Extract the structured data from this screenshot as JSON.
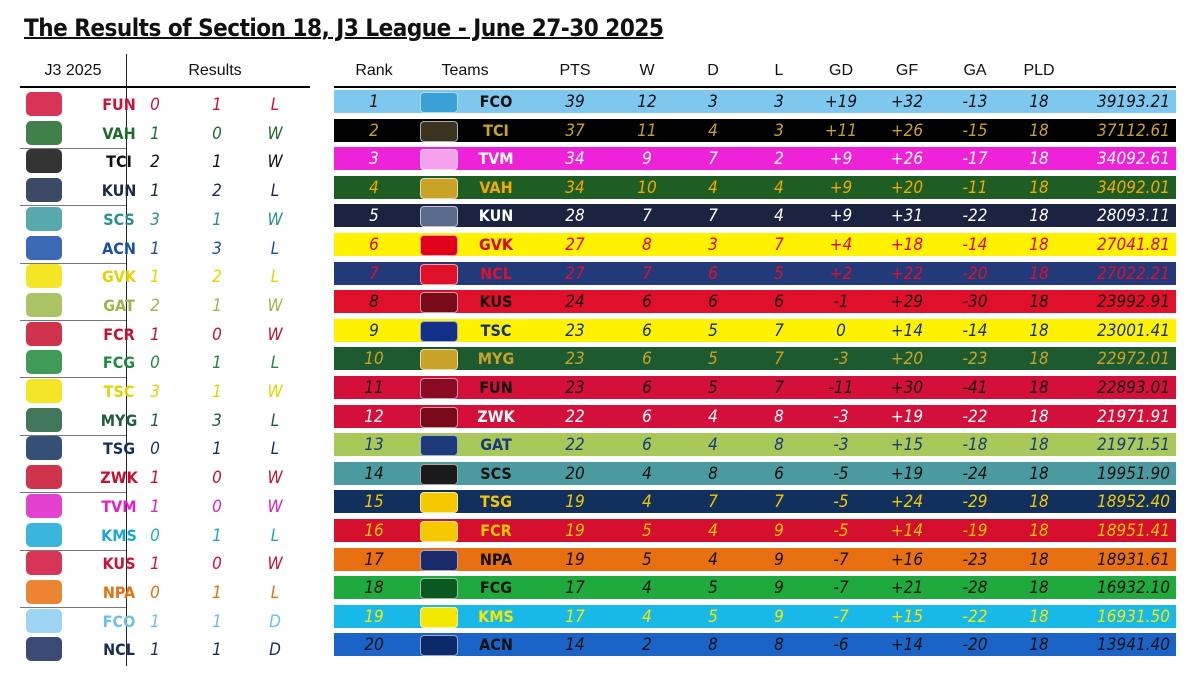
{
  "title": "The Results of Section 18, J3 League - June 27-30 2025",
  "left_headers": {
    "season": "J3 2025",
    "results": "Results"
  },
  "right_headers": [
    "Rank",
    "Teams",
    "PTS",
    "W",
    "D",
    "L",
    "GD",
    "GF",
    "GA",
    "PLD"
  ],
  "results": [
    {
      "team": "FUN",
      "gf": "0",
      "ga": "1",
      "res": "L",
      "text_color": "#d0103a",
      "logo_color": "#d0103a"
    },
    {
      "team": "VAH",
      "gf": "1",
      "ga": "0",
      "res": "W",
      "text_color": "#1e6b2c",
      "logo_color": "#1e6b2c"
    },
    {
      "team": "TCI",
      "gf": "2",
      "ga": "1",
      "res": "W",
      "text_color": "#111111",
      "logo_color": "#111111"
    },
    {
      "team": "KUN",
      "gf": "1",
      "ga": "2",
      "res": "L",
      "text_color": "#1b2a4a",
      "logo_color": "#1b2a4a"
    },
    {
      "team": "SCS",
      "gf": "3",
      "ga": "1",
      "res": "W",
      "text_color": "#2a8f96",
      "logo_color": "#3a9aa0"
    },
    {
      "team": "ACN",
      "gf": "1",
      "ga": "3",
      "res": "L",
      "text_color": "#1a4fa8",
      "logo_color": "#1a4fa8"
    },
    {
      "team": "GVK",
      "gf": "1",
      "ga": "2",
      "res": "L",
      "text_color": "#e6d200",
      "logo_color": "#f2e200"
    },
    {
      "team": "GAT",
      "gf": "2",
      "ga": "1",
      "res": "W",
      "text_color": "#9ab84a",
      "logo_color": "#9ab84a"
    },
    {
      "team": "FCR",
      "gf": "1",
      "ga": "0",
      "res": "W",
      "text_color": "#c8102e",
      "logo_color": "#c8102e"
    },
    {
      "team": "FCG",
      "gf": "0",
      "ga": "1",
      "res": "L",
      "text_color": "#1e8a3c",
      "logo_color": "#1e8a3c"
    },
    {
      "team": "TSC",
      "gf": "3",
      "ga": "1",
      "res": "W",
      "text_color": "#e6d200",
      "logo_color": "#f2e200"
    },
    {
      "team": "MYG",
      "gf": "1",
      "ga": "3",
      "res": "L",
      "text_color": "#1e5e3c",
      "logo_color": "#1e5e3c"
    },
    {
      "team": "TSG",
      "gf": "0",
      "ga": "1",
      "res": "L",
      "text_color": "#12305e",
      "logo_color": "#12305e"
    },
    {
      "team": "ZWK",
      "gf": "1",
      "ga": "0",
      "res": "W",
      "text_color": "#c8102e",
      "logo_color": "#c8102e"
    },
    {
      "team": "TVM",
      "gf": "1",
      "ga": "0",
      "res": "W",
      "text_color": "#e020c8",
      "logo_color": "#e020c8"
    },
    {
      "team": "KMS",
      "gf": "0",
      "ga": "1",
      "res": "L",
      "text_color": "#18a8d8",
      "logo_color": "#18a8d8"
    },
    {
      "team": "KUS",
      "gf": "1",
      "ga": "0",
      "res": "W",
      "text_color": "#d0103a",
      "logo_color": "#d0103a"
    },
    {
      "team": "NPA",
      "gf": "0",
      "ga": "1",
      "res": "L",
      "text_color": "#e87010",
      "logo_color": "#e87010"
    },
    {
      "team": "FCO",
      "gf": "1",
      "ga": "1",
      "res": "D",
      "text_color": "#6ec0e8",
      "logo_color": "#8ccdee"
    },
    {
      "team": "NCL",
      "gf": "1",
      "ga": "1",
      "res": "D",
      "text_color": "#1a2b5e",
      "logo_color": "#1a2b5e"
    }
  ],
  "standings": [
    {
      "rank": "1",
      "team": "FCO",
      "pts": "39",
      "w": "12",
      "d": "3",
      "l": "3",
      "gd": "+19",
      "gf": "+32",
      "ga": "-13",
      "pld": "18",
      "score": "39193.21",
      "bg": "#7ec8f0",
      "fg": "#111111",
      "badge": "#3aa0d8"
    },
    {
      "rank": "2",
      "team": "TCI",
      "pts": "37",
      "w": "11",
      "d": "4",
      "l": "3",
      "gd": "+11",
      "gf": "+26",
      "ga": "-15",
      "pld": "18",
      "score": "37112.61",
      "bg": "#000000",
      "fg": "#c9a227",
      "badge": "#3a3320"
    },
    {
      "rank": "3",
      "team": "TVM",
      "pts": "34",
      "w": "9",
      "d": "7",
      "l": "2",
      "gd": "+9",
      "gf": "+26",
      "ga": "-17",
      "pld": "18",
      "score": "34092.61",
      "bg": "#ee22d8",
      "fg": "#ffffff",
      "badge": "#f7a0ee"
    },
    {
      "rank": "4",
      "team": "VAH",
      "pts": "34",
      "w": "10",
      "d": "4",
      "l": "4",
      "gd": "+9",
      "gf": "+20",
      "ga": "-11",
      "pld": "18",
      "score": "34092.01",
      "bg": "#1e5e24",
      "fg": "#f5a800",
      "badge": "#c9a227"
    },
    {
      "rank": "5",
      "team": "KUN",
      "pts": "28",
      "w": "7",
      "d": "7",
      "l": "4",
      "gd": "+9",
      "gf": "+31",
      "ga": "-22",
      "pld": "18",
      "score": "28093.11",
      "bg": "#1a2340",
      "fg": "#ffffff",
      "badge": "#5a6a8a"
    },
    {
      "rank": "6",
      "team": "GVK",
      "pts": "27",
      "w": "8",
      "d": "3",
      "l": "7",
      "gd": "+4",
      "gf": "+18",
      "ga": "-14",
      "pld": "18",
      "score": "27041.81",
      "bg": "#fff200",
      "fg": "#e0001a",
      "badge": "#e0001a"
    },
    {
      "rank": "7",
      "team": "NCL",
      "pts": "27",
      "w": "7",
      "d": "6",
      "l": "5",
      "gd": "+2",
      "gf": "+22",
      "ga": "-20",
      "pld": "18",
      "score": "27022.21",
      "bg": "#233a7a",
      "fg": "#e0102a",
      "badge": "#e0102a"
    },
    {
      "rank": "8",
      "team": "KUS",
      "pts": "24",
      "w": "6",
      "d": "6",
      "l": "6",
      "gd": "-1",
      "gf": "+29",
      "ga": "-30",
      "pld": "18",
      "score": "23992.91",
      "bg": "#e0102a",
      "fg": "#111111",
      "badge": "#7a0a18"
    },
    {
      "rank": "9",
      "team": "TSC",
      "pts": "23",
      "w": "6",
      "d": "5",
      "l": "7",
      "gd": "0",
      "gf": "+14",
      "ga": "-14",
      "pld": "18",
      "score": "23001.41",
      "bg": "#fff200",
      "fg": "#12308a",
      "badge": "#12308a"
    },
    {
      "rank": "10",
      "team": "MYG",
      "pts": "23",
      "w": "6",
      "d": "5",
      "l": "7",
      "gd": "-3",
      "gf": "+20",
      "ga": "-23",
      "pld": "18",
      "score": "22972.01",
      "bg": "#1e5a30",
      "fg": "#c9a227",
      "badge": "#c9a227"
    },
    {
      "rank": "11",
      "team": "FUN",
      "pts": "23",
      "w": "6",
      "d": "5",
      "l": "7",
      "gd": "-11",
      "gf": "+30",
      "ga": "-41",
      "pld": "18",
      "score": "22893.01",
      "bg": "#d4103a",
      "fg": "#111111",
      "badge": "#8a0a24"
    },
    {
      "rank": "12",
      "team": "ZWK",
      "pts": "22",
      "w": "6",
      "d": "4",
      "l": "8",
      "gd": "-3",
      "gf": "+19",
      "ga": "-22",
      "pld": "18",
      "score": "21971.91",
      "bg": "#d4103a",
      "fg": "#ffffff",
      "badge": "#7a0a1a"
    },
    {
      "rank": "13",
      "team": "GAT",
      "pts": "22",
      "w": "6",
      "d": "4",
      "l": "8",
      "gd": "-3",
      "gf": "+15",
      "ga": "-18",
      "pld": "18",
      "score": "21971.51",
      "bg": "#a8c85a",
      "fg": "#1a3a7a",
      "badge": "#1a3a7a"
    },
    {
      "rank": "14",
      "team": "SCS",
      "pts": "20",
      "w": "4",
      "d": "8",
      "l": "6",
      "gd": "-5",
      "gf": "+19",
      "ga": "-24",
      "pld": "18",
      "score": "19951.90",
      "bg": "#4a9aa0",
      "fg": "#111111",
      "badge": "#1a1a1a"
    },
    {
      "rank": "15",
      "team": "TSG",
      "pts": "19",
      "w": "4",
      "d": "7",
      "l": "7",
      "gd": "-5",
      "gf": "+24",
      "ga": "-29",
      "pld": "18",
      "score": "18952.40",
      "bg": "#12305e",
      "fg": "#f5c800",
      "badge": "#f5c800"
    },
    {
      "rank": "16",
      "team": "FCR",
      "pts": "19",
      "w": "5",
      "d": "4",
      "l": "9",
      "gd": "-5",
      "gf": "+14",
      "ga": "-19",
      "pld": "18",
      "score": "18951.41",
      "bg": "#d4102e",
      "fg": "#f5c800",
      "badge": "#f5c800"
    },
    {
      "rank": "17",
      "team": "NPA",
      "pts": "19",
      "w": "5",
      "d": "4",
      "l": "9",
      "gd": "-7",
      "gf": "+16",
      "ga": "-23",
      "pld": "18",
      "score": "18931.61",
      "bg": "#e87010",
      "fg": "#111111",
      "badge": "#1a2a6a"
    },
    {
      "rank": "18",
      "team": "FCG",
      "pts": "17",
      "w": "4",
      "d": "5",
      "l": "9",
      "gd": "-7",
      "gf": "+21",
      "ga": "-28",
      "pld": "18",
      "score": "16932.10",
      "bg": "#1eaa3c",
      "fg": "#111111",
      "badge": "#0a5a20"
    },
    {
      "rank": "19",
      "team": "KMS",
      "pts": "17",
      "w": "4",
      "d": "5",
      "l": "9",
      "gd": "-7",
      "gf": "+15",
      "ga": "-22",
      "pld": "18",
      "score": "16931.50",
      "bg": "#18b8e8",
      "fg": "#f5e800",
      "badge": "#f5e800"
    },
    {
      "rank": "20",
      "team": "ACN",
      "pts": "14",
      "w": "2",
      "d": "8",
      "l": "8",
      "gd": "-6",
      "gf": "+14",
      "ga": "-20",
      "pld": "18",
      "score": "13941.40",
      "bg": "#1a64c8",
      "fg": "#111111",
      "badge": "#0a2a6a"
    }
  ]
}
